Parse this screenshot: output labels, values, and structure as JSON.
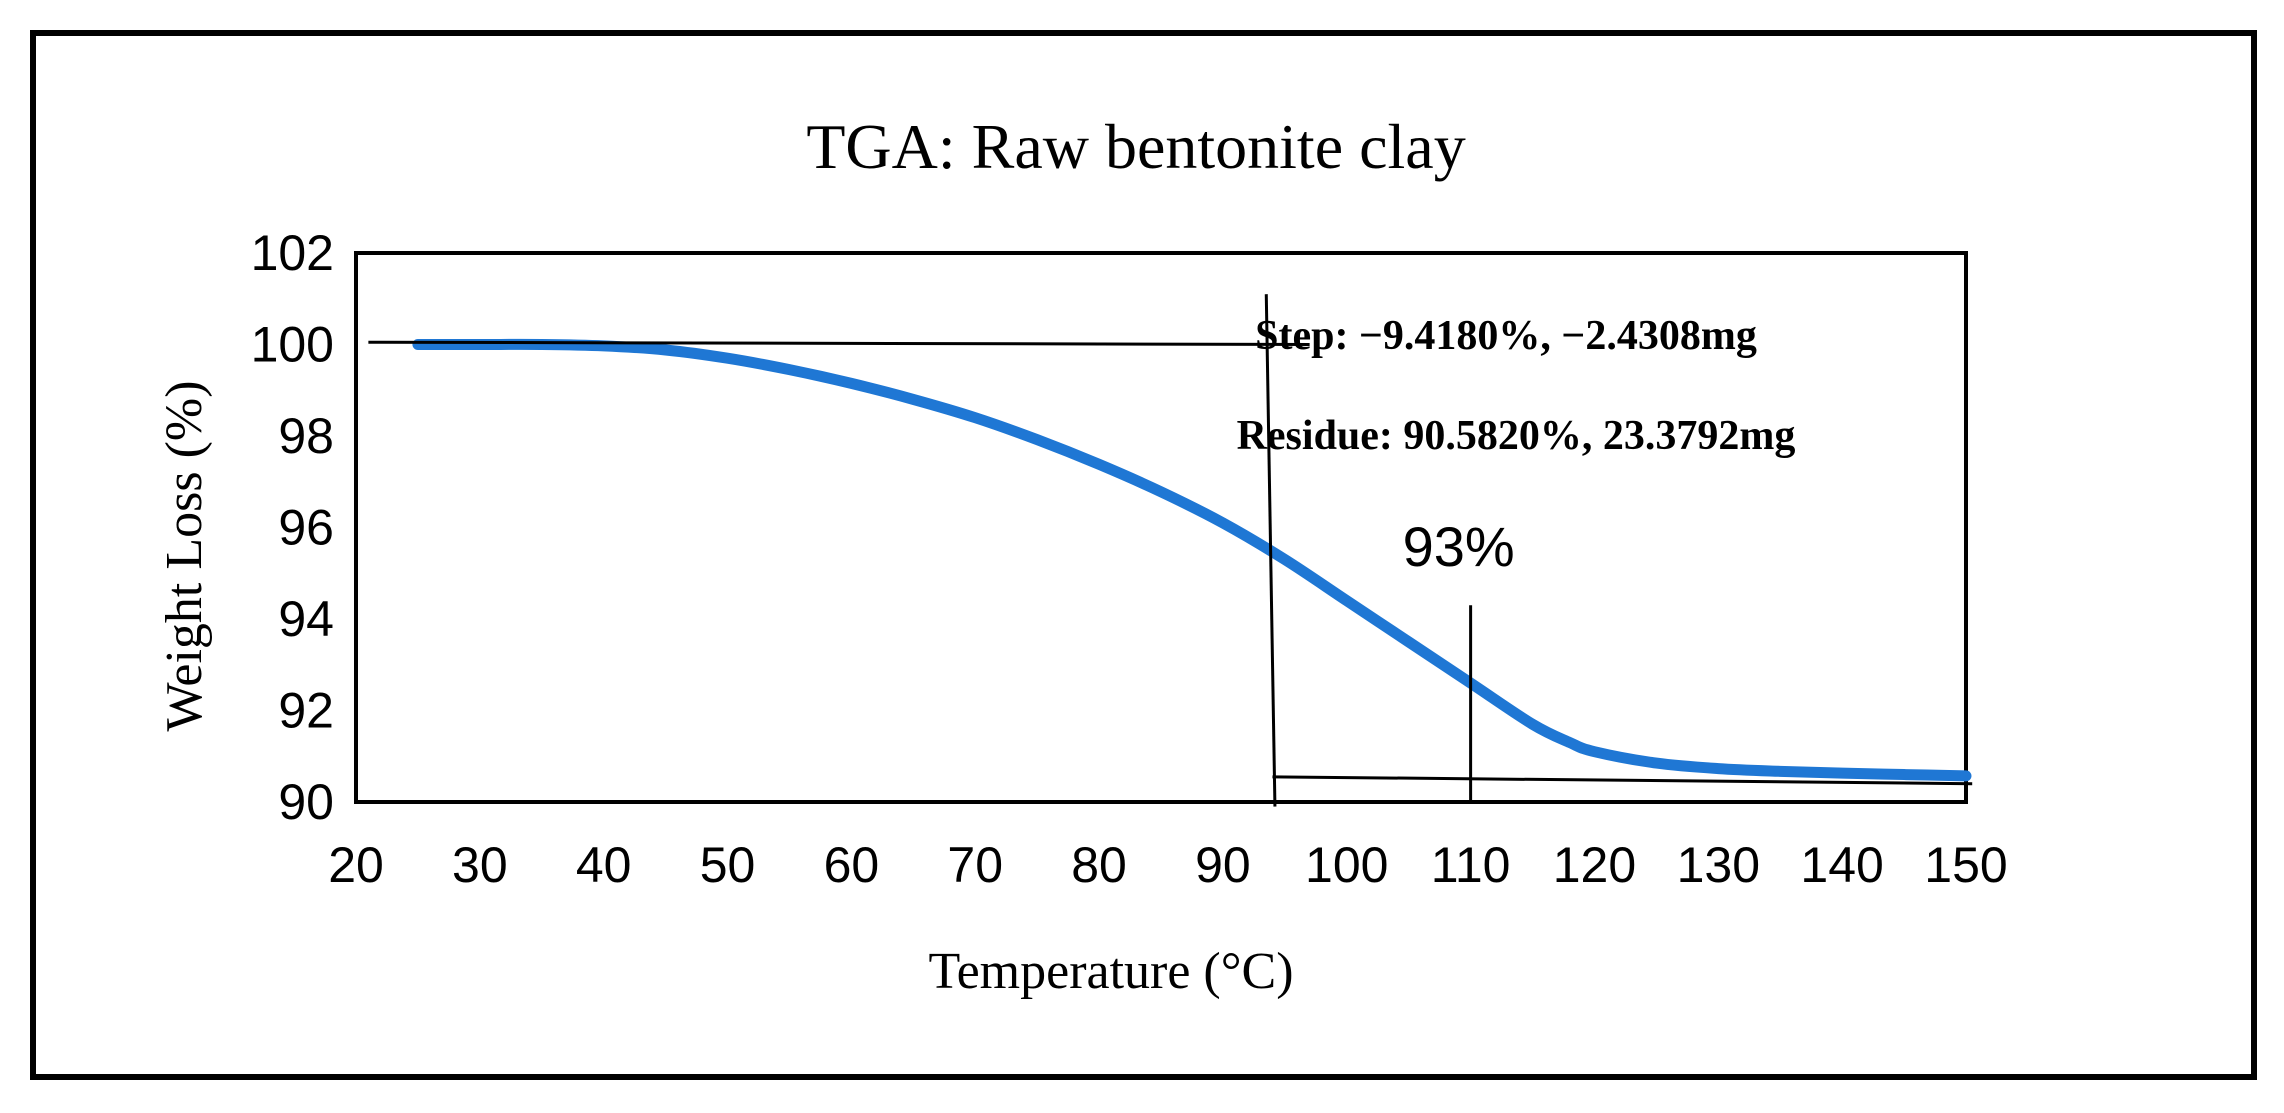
{
  "colors": {
    "curve": "#1f77d4",
    "axis": "#000000",
    "background": "#ffffff"
  },
  "chart_data": {
    "type": "line",
    "title": "TGA: Raw bentonite clay",
    "xlabel": "Temperature (°C)",
    "ylabel": "Weight Loss (%)",
    "xlim": [
      20,
      150
    ],
    "ylim": [
      90,
      102
    ],
    "xticks": [
      "20",
      "30",
      "40",
      "50",
      "60",
      "70",
      "80",
      "90",
      "100",
      "110",
      "120",
      "130",
      "140",
      "150"
    ],
    "yticks": [
      "90",
      "92",
      "94",
      "96",
      "98",
      "100",
      "102"
    ],
    "grid": false,
    "series": [
      {
        "name": "Raw bentonite clay",
        "x": [
          25,
          30,
          35,
          40,
          45,
          50,
          55,
          60,
          65,
          70,
          75,
          80,
          85,
          90,
          95,
          100,
          105,
          110,
          115,
          118,
          120,
          125,
          130,
          135,
          140,
          145,
          150
        ],
        "y": [
          100.0,
          100.0,
          100.0,
          99.97,
          99.88,
          99.7,
          99.45,
          99.15,
          98.8,
          98.4,
          97.92,
          97.38,
          96.78,
          96.1,
          95.3,
          94.4,
          93.5,
          92.6,
          91.7,
          91.3,
          91.1,
          90.85,
          90.73,
          90.67,
          90.63,
          90.6,
          90.57
        ]
      }
    ],
    "annotations": {
      "step_text": "Step: −9.4180%, −2.4308mg",
      "residue_text": "Residue: 90.5820%, 23.3792mg",
      "midpoint_text": "93%",
      "midpoint_x": 110,
      "baseline_start": {
        "x1": 21,
        "y1": 100.05,
        "x2": 97,
        "y2": 100.0
      },
      "baseline_end": {
        "x1": 94,
        "y1": 90.55,
        "x2": 150.5,
        "y2": 90.4
      },
      "onset_line": {
        "x1": 93.5,
        "y1": 101.1,
        "x2": 94.2,
        "y2": 89.9
      }
    }
  }
}
